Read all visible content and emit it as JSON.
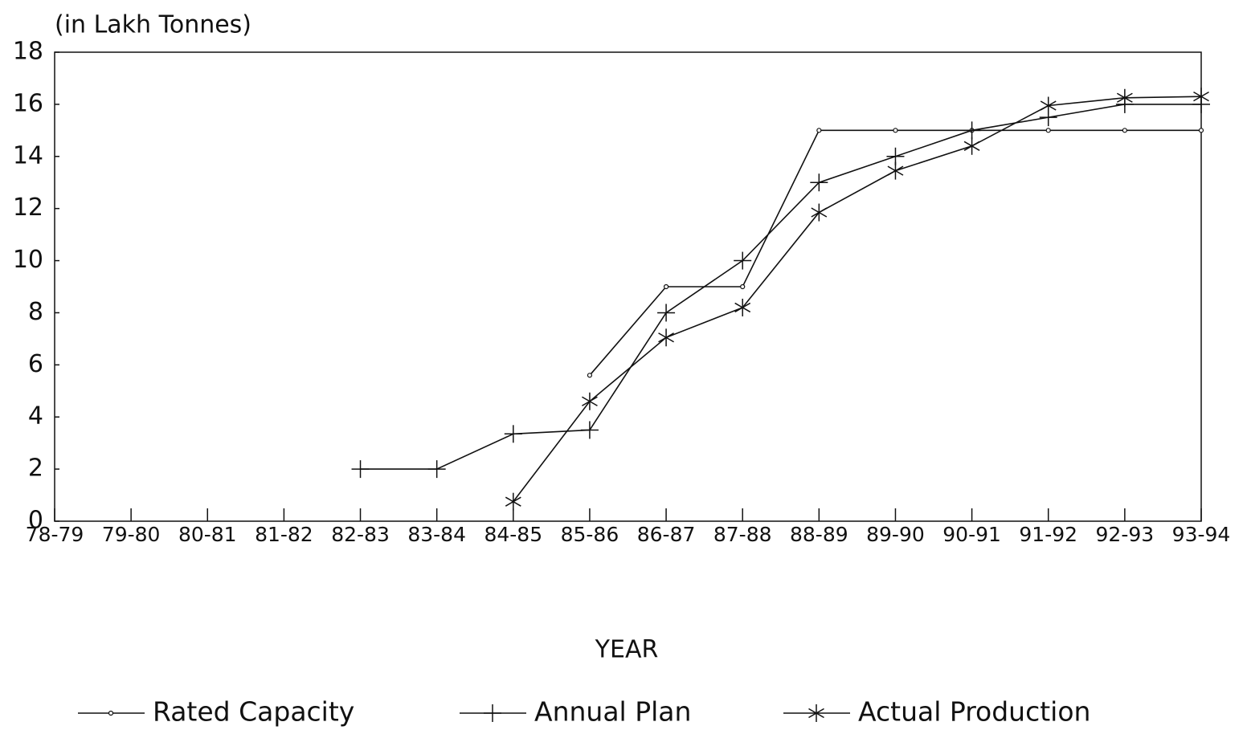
{
  "chart_data": {
    "type": "line",
    "title": "(in Lakh Tonnes)",
    "x_label": "YEAR",
    "categories": [
      "78-79",
      "79-80",
      "80-81",
      "81-82",
      "82-83",
      "83-84",
      "84-85",
      "85-86",
      "86-87",
      "87-88",
      "88-89",
      "89-90",
      "90-91",
      "91-92",
      "92-93",
      "93-94"
    ],
    "series": [
      {
        "name": "Rated Capacity",
        "color": "#111111",
        "marker": "circle",
        "values": [
          null,
          null,
          null,
          null,
          null,
          null,
          null,
          5.6,
          9,
          9,
          15,
          15,
          15,
          15,
          15,
          15
        ]
      },
      {
        "name": "Annual Plan",
        "color": "#111111",
        "marker": "plus",
        "values": [
          null,
          null,
          null,
          null,
          2,
          2,
          3.35,
          3.5,
          8,
          10,
          13,
          14,
          15,
          15.5,
          16,
          16
        ]
      },
      {
        "name": "Actual Production",
        "color": "#111111",
        "marker": "star",
        "values": [
          null,
          null,
          null,
          null,
          null,
          null,
          0.75,
          4.6,
          7.05,
          8.2,
          11.85,
          13.45,
          14.4,
          15.95,
          16.25,
          16.3
        ]
      }
    ],
    "ylim": [
      0,
      18
    ],
    "yticks": [
      0,
      2,
      4,
      6,
      8,
      10,
      12,
      14,
      16,
      18
    ],
    "grid": false,
    "legend": "bottom"
  }
}
